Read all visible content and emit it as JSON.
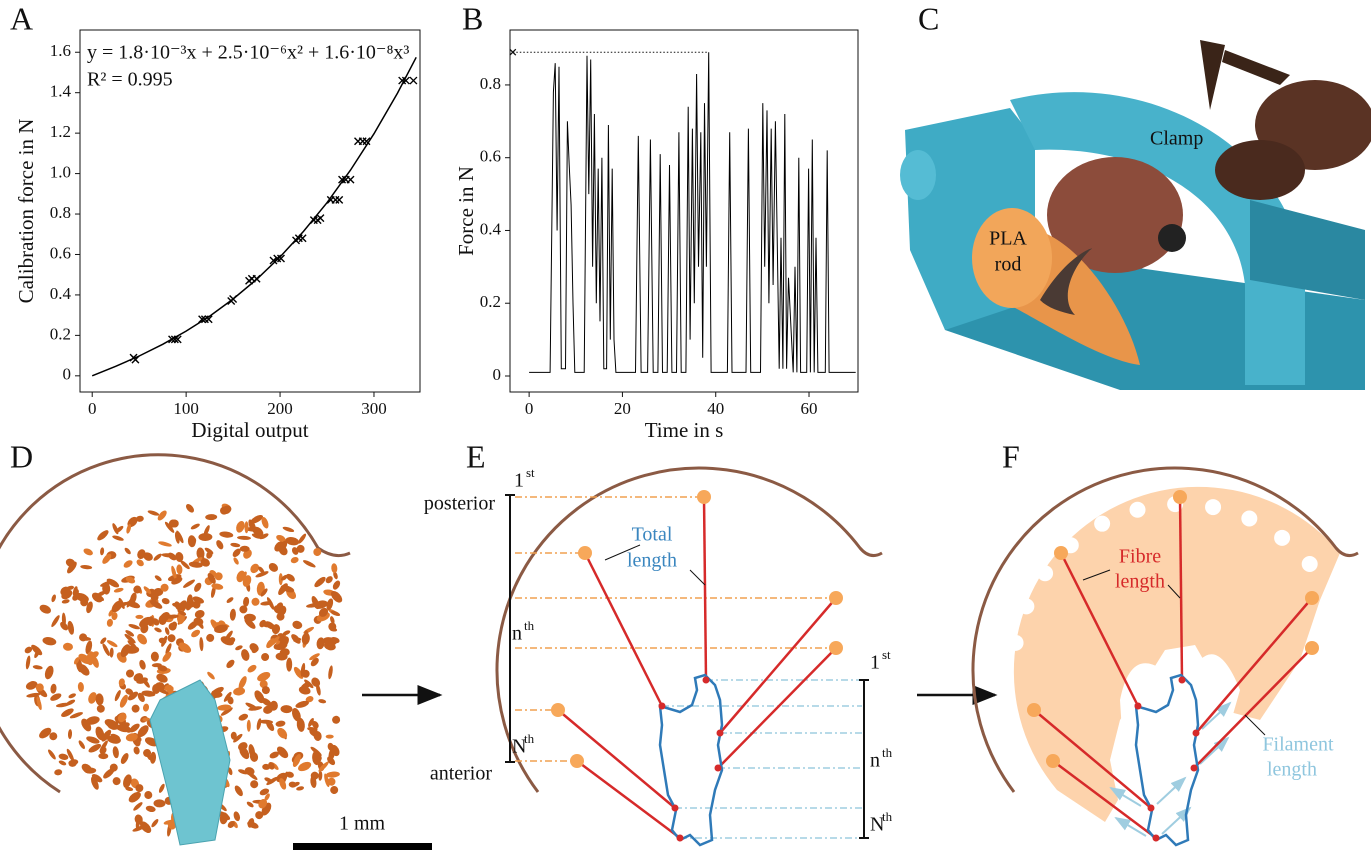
{
  "chart_data": [
    {
      "type": "scatter",
      "equation": "y = 1.8·10⁻³x + 2.5·10⁻⁶x² + 1.6·10⁻⁸x³",
      "r_squared": "R² = 0.995",
      "x_label": "Digital output",
      "y_label": "Calibration force in N",
      "color": "#000000",
      "x": [
        44,
        46,
        85,
        88,
        91,
        117,
        120,
        124,
        148,
        150,
        167,
        170,
        175,
        193,
        197,
        201,
        217,
        220,
        224,
        236,
        240,
        243,
        254,
        259,
        263,
        266,
        270,
        275,
        283,
        288,
        292,
        330,
        334,
        342
      ],
      "values": [
        0.09,
        0.08,
        0.18,
        0.18,
        0.18,
        0.28,
        0.28,
        0.28,
        0.37,
        0.38,
        0.47,
        0.48,
        0.48,
        0.57,
        0.58,
        0.58,
        0.67,
        0.68,
        0.68,
        0.77,
        0.77,
        0.78,
        0.87,
        0.87,
        0.87,
        0.97,
        0.97,
        0.97,
        1.16,
        1.16,
        1.16,
        1.46,
        1.46,
        1.46
      ],
      "fit": {
        "x": [
          0,
          25,
          50,
          75,
          100,
          125,
          150,
          175,
          200,
          225,
          250,
          275,
          300,
          325,
          345
        ],
        "values": [
          0,
          0.047,
          0.098,
          0.156,
          0.221,
          0.295,
          0.38,
          0.477,
          0.588,
          0.714,
          0.856,
          1.017,
          1.197,
          1.398,
          1.575
        ]
      },
      "xlim": [
        -13,
        349
      ],
      "ylim": [
        -0.08,
        1.71
      ],
      "xticks": [
        0,
        100,
        200,
        300
      ],
      "yticks": [
        0,
        0.2,
        0.4,
        0.6,
        0.8,
        {
          "value": 1,
          "label": "1.0"
        },
        1.2,
        1.4,
        1.6
      ]
    },
    {
      "type": "line",
      "x_label": "Time in s",
      "y_label": "Force in N",
      "color": "#000000",
      "x": [
        0,
        4.5,
        5.2,
        5.6,
        6.0,
        6.4,
        6.9,
        7.8,
        8.2,
        8.6,
        9.0,
        9.4,
        9.8,
        11.8,
        12.4,
        12.8,
        13.2,
        13.6,
        14.0,
        14.4,
        14.8,
        15.2,
        15.6,
        16.0,
        16.6,
        17.0,
        17.4,
        17.8,
        18.2,
        18.6,
        22.8,
        23.4,
        24.0,
        25.4,
        26.0,
        26.6,
        27.6,
        28.1,
        28.6,
        29.6,
        30.1,
        30.6,
        31.6,
        32.1,
        32.6,
        33.6,
        34.1,
        34.5,
        35.0,
        35.4,
        35.9,
        36.3,
        36.8,
        37.2,
        37.6,
        38.0,
        38.5,
        39.0,
        42.5,
        43.0,
        43.5,
        46.5,
        47.0,
        47.5,
        49.6,
        50.1,
        50.5,
        51.0,
        51.4,
        51.9,
        52.3,
        52.8,
        53.6,
        54.0,
        54.4,
        54.8,
        55.2,
        55.6,
        56.6,
        57.0,
        57.4,
        57.8,
        58.2,
        59.5,
        59.9,
        60.3,
        60.7,
        61.1,
        61.5,
        61.9,
        63.5,
        63.9,
        64.3,
        70
      ],
      "values": [
        0.01,
        0.01,
        0.78,
        0.86,
        0.4,
        0.85,
        0.02,
        0.02,
        0.7,
        0.58,
        0.47,
        0.2,
        0.01,
        0.01,
        0.88,
        0.5,
        0.87,
        0.3,
        0.72,
        0.2,
        0.57,
        0.15,
        0.6,
        0.02,
        0.02,
        0.69,
        0.1,
        0.57,
        0.1,
        0.01,
        0.01,
        0.66,
        0.01,
        0.01,
        0.65,
        0.01,
        0.01,
        0.61,
        0.01,
        0.01,
        0.58,
        0.01,
        0.01,
        0.67,
        0.01,
        0.01,
        0.74,
        0.1,
        0.68,
        0.2,
        0.83,
        0.3,
        0.67,
        0.05,
        0.75,
        0.3,
        0.89,
        0.01,
        0.01,
        0.67,
        0.01,
        0.01,
        0.68,
        0.01,
        0.01,
        0.75,
        0.3,
        0.73,
        0.2,
        0.68,
        0.25,
        0.7,
        0.02,
        0.38,
        0.02,
        0.72,
        0.02,
        0.27,
        0.01,
        0.3,
        0.01,
        0.6,
        0.01,
        0.01,
        0.57,
        0.01,
        0.65,
        0.01,
        0.38,
        0.01,
        0.01,
        0.62,
        0.01,
        0.01
      ],
      "max_line": {
        "x": [
          -3.5,
          38.5
        ],
        "value": 0.89
      },
      "xlim": [
        -4.1,
        70.5
      ],
      "ylim": [
        -0.044,
        0.951
      ],
      "xticks": [
        0,
        20,
        40,
        60
      ],
      "yticks": [
        0,
        0.2,
        0.4,
        0.6,
        0.8
      ]
    }
  ],
  "panel_labels": [
    "A",
    "B",
    "C",
    "D",
    "E",
    "F"
  ],
  "photo": {
    "clamp": "Clamp",
    "rod": [
      "PLA",
      "rod"
    ]
  },
  "scale_bar": "1 mm",
  "diagram_e": {
    "posterior": "posterior",
    "anterior": "anterior",
    "total_length": [
      "Total",
      "length"
    ],
    "left_ordinals": [
      {
        "main": "1",
        "sup": "st"
      },
      {
        "main": "n",
        "sup": "th"
      },
      {
        "main": "N",
        "sup": "th"
      }
    ],
    "right_ordinals": [
      {
        "main": "1",
        "sup": "st"
      },
      {
        "main": "n",
        "sup": "th"
      },
      {
        "main": "N",
        "sup": "th"
      }
    ]
  },
  "diagram_f": {
    "fibre_length": [
      "Fibre",
      "length"
    ],
    "filament_length": [
      "Filament",
      "length"
    ]
  }
}
